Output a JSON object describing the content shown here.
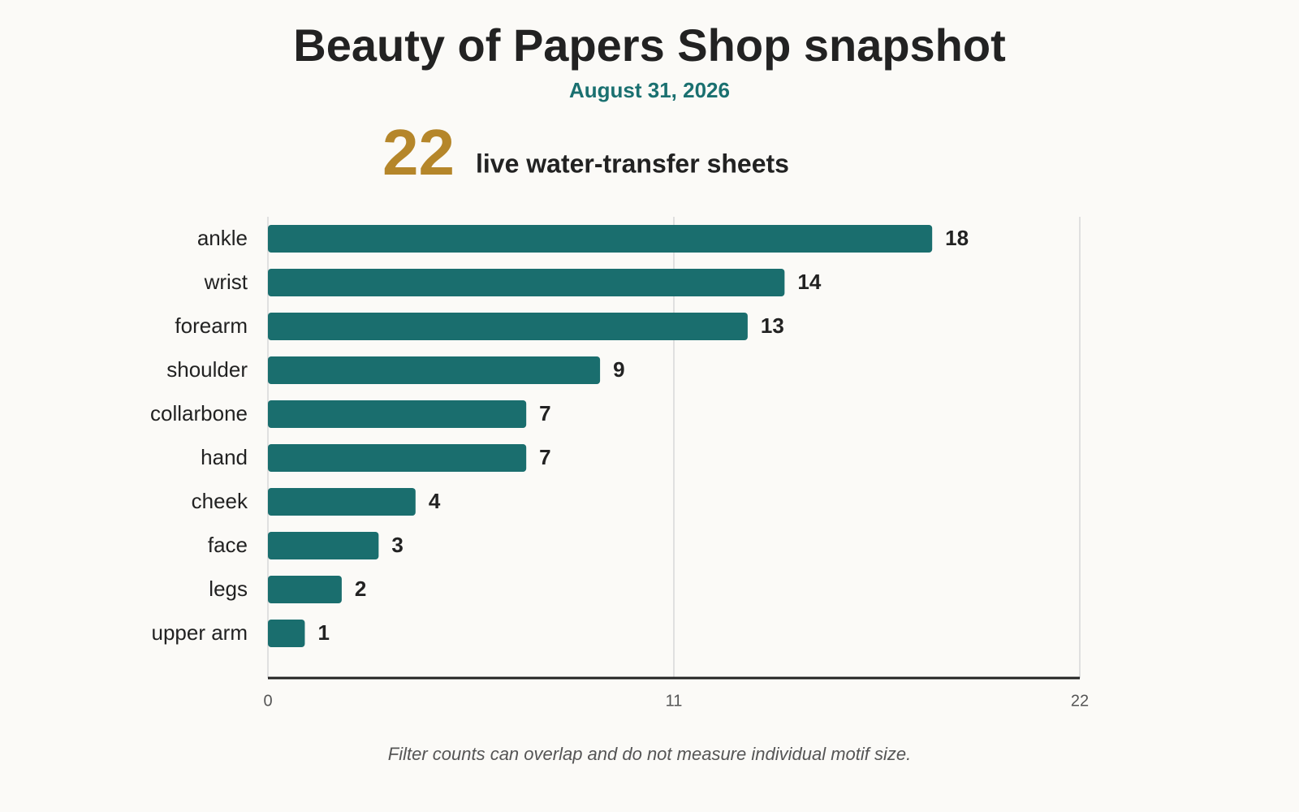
{
  "chart_data": {
    "type": "bar",
    "orientation": "horizontal",
    "title": "Beauty of Papers Shop snapshot",
    "subtitle": "August 31, 2026",
    "kpi": {
      "value": 22,
      "label": "live water-transfer sheets"
    },
    "categories": [
      "ankle",
      "wrist",
      "forearm",
      "shoulder",
      "collarbone",
      "hand",
      "cheek",
      "face",
      "legs",
      "upper arm"
    ],
    "values": [
      18,
      14,
      13,
      9,
      7,
      7,
      4,
      3,
      2,
      1
    ],
    "color": "#1a6e6e",
    "xlim": [
      0,
      22
    ],
    "xticks": [
      0,
      11,
      22
    ],
    "grid": true,
    "note": "Filter counts can overlap and do not measure individual motif size."
  }
}
